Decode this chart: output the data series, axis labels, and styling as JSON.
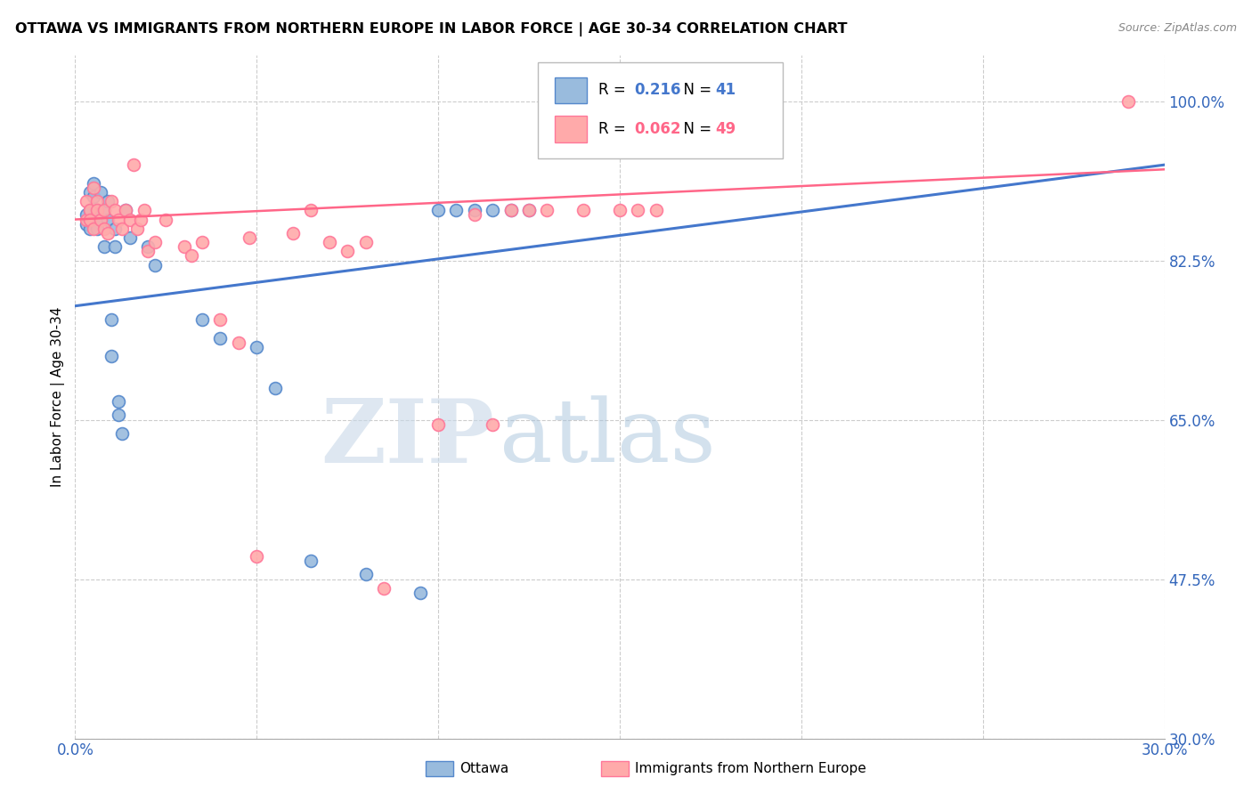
{
  "title": "OTTAWA VS IMMIGRANTS FROM NORTHERN EUROPE IN LABOR FORCE | AGE 30-34 CORRELATION CHART",
  "source": "Source: ZipAtlas.com",
  "ylabel": "In Labor Force | Age 30-34",
  "xlim": [
    0.0,
    0.3
  ],
  "ylim": [
    0.3,
    1.05
  ],
  "yticks": [
    1.0,
    0.825,
    0.65,
    0.475,
    0.3
  ],
  "ytick_labels": [
    "100.0%",
    "82.5%",
    "65.0%",
    "47.5%",
    "30.0%"
  ],
  "xtick_labels": [
    "0.0%",
    "30.0%"
  ],
  "xtick_positions": [
    0.0,
    0.3
  ],
  "legend_R_blue": "0.216",
  "legend_N_blue": "41",
  "legend_R_pink": "0.062",
  "legend_N_pink": "49",
  "blue_scatter_color": "#99BBDD",
  "blue_edge_color": "#5588CC",
  "pink_scatter_color": "#FFAAAA",
  "pink_edge_color": "#FF7799",
  "blue_line_color": "#4477CC",
  "pink_line_color": "#FF6688",
  "watermark_zip": "ZIP",
  "watermark_atlas": "atlas",
  "ottawa_x": [
    0.003,
    0.003,
    0.004,
    0.004,
    0.004,
    0.005,
    0.005,
    0.005,
    0.006,
    0.006,
    0.006,
    0.007,
    0.007,
    0.008,
    0.008,
    0.009,
    0.009,
    0.01,
    0.01,
    0.011,
    0.011,
    0.012,
    0.012,
    0.013,
    0.014,
    0.015,
    0.02,
    0.022,
    0.035,
    0.04,
    0.05,
    0.055,
    0.065,
    0.08,
    0.095,
    0.1,
    0.105,
    0.11,
    0.115,
    0.12,
    0.125
  ],
  "ottawa_y": [
    0.865,
    0.875,
    0.88,
    0.9,
    0.86,
    0.91,
    0.87,
    0.895,
    0.88,
    0.86,
    0.875,
    0.87,
    0.9,
    0.88,
    0.84,
    0.87,
    0.89,
    0.76,
    0.72,
    0.86,
    0.84,
    0.67,
    0.655,
    0.635,
    0.88,
    0.85,
    0.84,
    0.82,
    0.76,
    0.74,
    0.73,
    0.685,
    0.495,
    0.48,
    0.46,
    0.88,
    0.88,
    0.88,
    0.88,
    0.88,
    0.88
  ],
  "pink_x": [
    0.003,
    0.003,
    0.004,
    0.004,
    0.005,
    0.005,
    0.006,
    0.006,
    0.007,
    0.008,
    0.008,
    0.009,
    0.01,
    0.011,
    0.012,
    0.013,
    0.014,
    0.015,
    0.016,
    0.017,
    0.018,
    0.019,
    0.02,
    0.022,
    0.025,
    0.03,
    0.032,
    0.035,
    0.04,
    0.045,
    0.048,
    0.05,
    0.06,
    0.065,
    0.07,
    0.075,
    0.08,
    0.085,
    0.1,
    0.11,
    0.115,
    0.12,
    0.125,
    0.13,
    0.14,
    0.15,
    0.155,
    0.16,
    0.29
  ],
  "pink_y": [
    0.87,
    0.89,
    0.88,
    0.87,
    0.905,
    0.86,
    0.89,
    0.88,
    0.87,
    0.88,
    0.86,
    0.855,
    0.89,
    0.88,
    0.87,
    0.86,
    0.88,
    0.87,
    0.93,
    0.86,
    0.87,
    0.88,
    0.835,
    0.845,
    0.87,
    0.84,
    0.83,
    0.845,
    0.76,
    0.735,
    0.85,
    0.5,
    0.855,
    0.88,
    0.845,
    0.835,
    0.845,
    0.465,
    0.645,
    0.875,
    0.645,
    0.88,
    0.88,
    0.88,
    0.88,
    0.88,
    0.88,
    0.88,
    1.0
  ]
}
